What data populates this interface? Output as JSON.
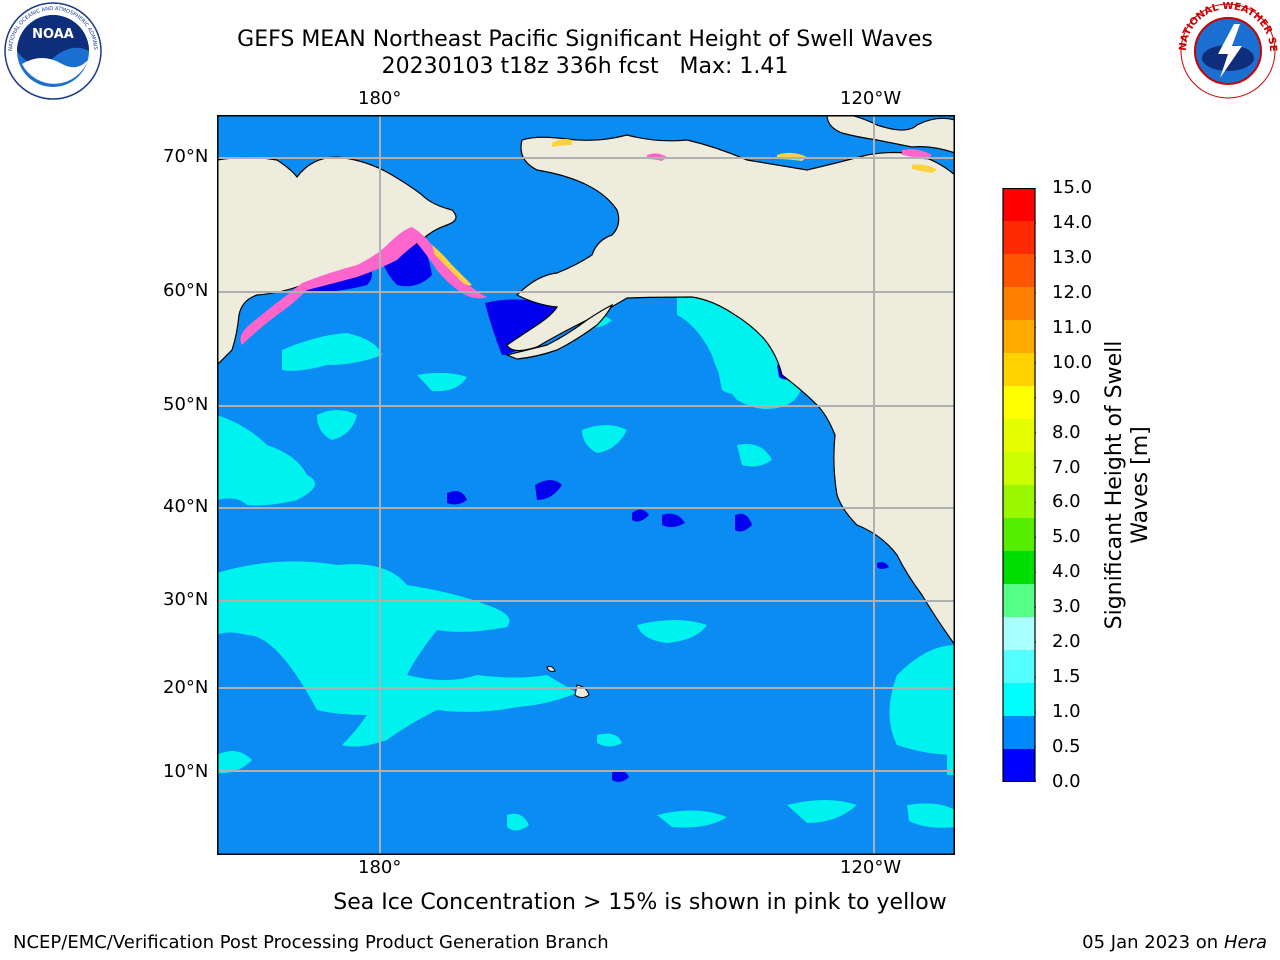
{
  "header": {
    "title": "GEFS MEAN Northeast Pacific Significant Height of Swell Waves",
    "subtitle": "20230103 t18z 336h fcst   Max: 1.41"
  },
  "logos": {
    "left": "NOAA",
    "left_ring": "NATIONAL OCEANIC AND ATMOSPHERIC ADMINISTRATION · U.S. DEPARTMENT OF COMMERCE",
    "right_ring": "NATIONAL WEATHER SERVICE"
  },
  "map": {
    "lon_labels": [
      "180°",
      "120°W"
    ],
    "lat_labels": [
      "70°N",
      "60°N",
      "50°N",
      "40°N",
      "30°N",
      "20°N",
      "10°N"
    ],
    "colors": {
      "land": "#eeeddd",
      "ocean_main": "#0a8cf2",
      "ocean_low": "#0000ee",
      "ocean_mid": "#00f2ee",
      "ice_pink": "#ff66cc",
      "ice_yellow": "#ffd040",
      "grid": "#b0b0b0"
    }
  },
  "colorbar": {
    "label_line1": "Significant Height of Swell",
    "label_line2": "Waves [m]",
    "ticks": [
      "15.0",
      "14.0",
      "13.0",
      "12.0",
      "11.0",
      "10.0",
      "9.0",
      "8.0",
      "7.0",
      "6.0",
      "5.0",
      "4.0",
      "3.0",
      "2.0",
      "1.5",
      "1.0",
      "0.5",
      "0.0"
    ],
    "colors": [
      "#ff0000",
      "#ff2a00",
      "#ff5500",
      "#ff8000",
      "#ffaa00",
      "#ffd200",
      "#ffff00",
      "#e6ff00",
      "#ccff00",
      "#99f700",
      "#55ee00",
      "#00dd00",
      "#55ff88",
      "#aaffff",
      "#55ffff",
      "#00ffff",
      "#0088ff",
      "#0000ff"
    ]
  },
  "note": "Sea Ice Concentration > 15% is shown in pink to yellow",
  "footer": {
    "left": "NCEP/EMC/Verification Post Processing Product Generation Branch",
    "right_prefix": "05 Jan 2023 on ",
    "right_host": "Hera"
  }
}
